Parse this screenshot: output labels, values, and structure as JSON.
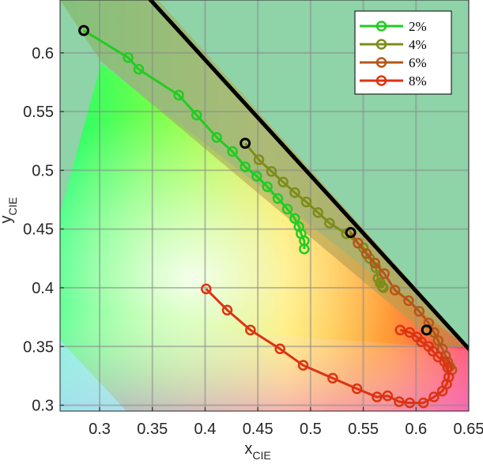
{
  "chart_data": {
    "type": "line",
    "title": "",
    "xlabel": {
      "main": "x",
      "sub": "CIE"
    },
    "ylabel": {
      "main": "y",
      "sub": "CIE"
    },
    "xlim": [
      0.2625,
      0.65
    ],
    "ylim": [
      0.295,
      0.645
    ],
    "xticks": [
      0.3,
      0.35,
      0.4,
      0.45,
      0.5,
      0.55,
      0.6,
      0.65
    ],
    "xtick_labels": [
      "0.3",
      "0.35",
      "0.4",
      "0.45",
      "0.5",
      "0.55",
      "0.6",
      "0.65"
    ],
    "yticks": [
      0.3,
      0.35,
      0.4,
      0.45,
      0.5,
      0.55,
      0.6
    ],
    "ytick_labels": [
      "0.3",
      "0.35",
      "0.4",
      "0.45",
      "0.5",
      "0.55",
      "0.6"
    ],
    "grid": true,
    "legend_position": "top-right",
    "spectral_locus_edge": [
      [
        0.33,
        0.663
      ],
      [
        0.653,
        0.345
      ]
    ],
    "series": [
      {
        "name": "2%",
        "color": "#22cc22",
        "points": [
          [
            0.285,
            0.619
          ],
          [
            0.327,
            0.596
          ],
          [
            0.337,
            0.586
          ],
          [
            0.375,
            0.564
          ],
          [
            0.392,
            0.547
          ],
          [
            0.411,
            0.528
          ],
          [
            0.426,
            0.516
          ],
          [
            0.438,
            0.503
          ],
          [
            0.449,
            0.495
          ],
          [
            0.459,
            0.486
          ],
          [
            0.469,
            0.476
          ],
          [
            0.478,
            0.467
          ],
          [
            0.485,
            0.459
          ],
          [
            0.489,
            0.452
          ],
          [
            0.491,
            0.446
          ],
          [
            0.494,
            0.44
          ],
          [
            0.494,
            0.433
          ]
        ]
      },
      {
        "name": "4%",
        "color": "#7e8c1a",
        "points": [
          [
            0.438,
            0.523
          ],
          [
            0.451,
            0.509
          ],
          [
            0.463,
            0.499
          ],
          [
            0.474,
            0.49
          ],
          [
            0.485,
            0.481
          ],
          [
            0.496,
            0.473
          ],
          [
            0.507,
            0.464
          ],
          [
            0.518,
            0.455
          ],
          [
            0.534,
            0.446
          ],
          [
            0.55,
            0.434
          ],
          [
            0.556,
            0.425
          ],
          [
            0.562,
            0.417
          ],
          [
            0.564,
            0.408
          ],
          [
            0.566,
            0.404
          ],
          [
            0.568,
            0.401
          ],
          [
            0.569,
            0.4
          ]
        ]
      },
      {
        "name": "6%",
        "color": "#b5571a",
        "points": [
          [
            0.538,
            0.447
          ],
          [
            0.545,
            0.438
          ],
          [
            0.553,
            0.429
          ],
          [
            0.561,
            0.421
          ],
          [
            0.57,
            0.412
          ],
          [
            0.58,
            0.398
          ],
          [
            0.593,
            0.389
          ],
          [
            0.603,
            0.38
          ],
          [
            0.612,
            0.37
          ],
          [
            0.617,
            0.362
          ],
          [
            0.621,
            0.355
          ],
          [
            0.625,
            0.348
          ],
          [
            0.628,
            0.342
          ],
          [
            0.63,
            0.337
          ],
          [
            0.632,
            0.333
          ],
          [
            0.634,
            0.33
          ]
        ]
      },
      {
        "name": "8%",
        "color": "#dd3311",
        "points": [
          [
            0.401,
            0.399
          ],
          [
            0.421,
            0.381
          ],
          [
            0.443,
            0.364
          ],
          [
            0.471,
            0.348
          ],
          [
            0.493,
            0.334
          ],
          [
            0.521,
            0.323
          ],
          [
            0.544,
            0.314
          ],
          [
            0.563,
            0.307
          ],
          [
            0.573,
            0.308
          ],
          [
            0.584,
            0.303
          ],
          [
            0.594,
            0.302
          ],
          [
            0.607,
            0.302
          ],
          [
            0.617,
            0.307
          ],
          [
            0.625,
            0.312
          ],
          [
            0.629,
            0.318
          ],
          [
            0.631,
            0.324
          ],
          [
            0.63,
            0.332
          ],
          [
            0.627,
            0.337
          ],
          [
            0.621,
            0.341
          ],
          [
            0.616,
            0.346
          ],
          [
            0.612,
            0.35
          ],
          [
            0.605,
            0.354
          ],
          [
            0.601,
            0.358
          ],
          [
            0.594,
            0.362
          ],
          [
            0.585,
            0.364
          ]
        ]
      }
    ],
    "highlighted_points": [
      [
        0.285,
        0.619
      ],
      [
        0.438,
        0.523
      ],
      [
        0.538,
        0.447
      ],
      [
        0.61,
        0.364
      ]
    ]
  }
}
